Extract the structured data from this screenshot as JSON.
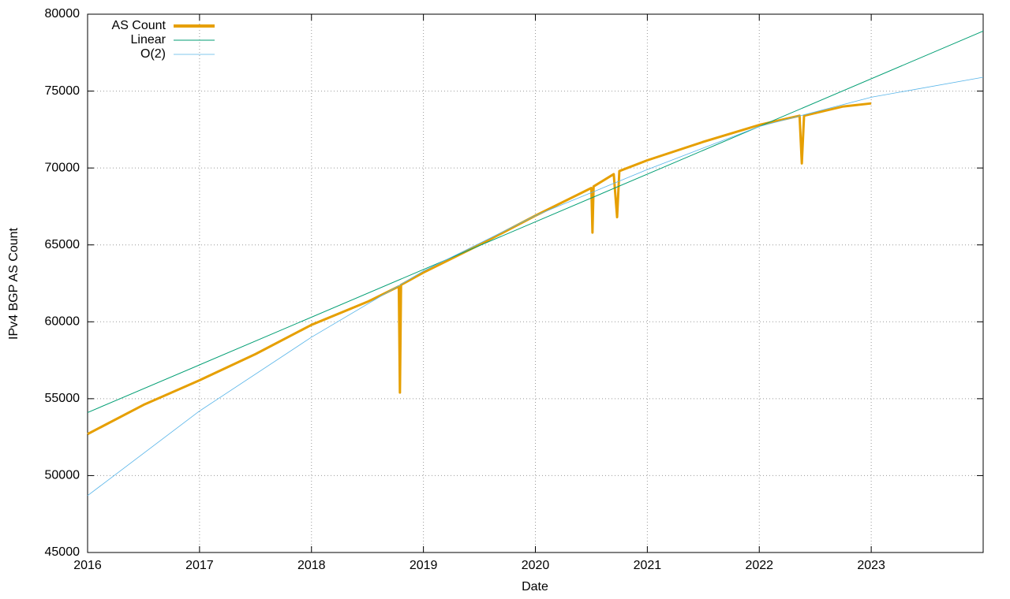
{
  "chart_data": {
    "type": "line",
    "xlabel": "Date",
    "ylabel": "IPv4 BGP AS Count",
    "xlim": [
      2016,
      2024
    ],
    "xticks": [
      2016,
      2017,
      2018,
      2019,
      2020,
      2021,
      2022,
      2023
    ],
    "ylim": [
      45000,
      80000
    ],
    "yticks": [
      45000,
      50000,
      55000,
      60000,
      65000,
      70000,
      75000,
      80000
    ],
    "grid": true,
    "legend": "top-left",
    "series": [
      {
        "name": "AS Count",
        "color": "#e69f00",
        "x": [
          2016.0,
          2016.5,
          2017.0,
          2017.5,
          2018.0,
          2018.5,
          2018.78,
          2018.79,
          2018.8,
          2019.0,
          2019.5,
          2020.0,
          2020.5,
          2020.51,
          2020.52,
          2020.7,
          2020.73,
          2020.75,
          2021.0,
          2021.5,
          2022.0,
          2022.36,
          2022.38,
          2022.4,
          2022.75,
          2023.0
        ],
        "values": [
          52700,
          54600,
          56200,
          57900,
          59800,
          61300,
          62300,
          55400,
          62400,
          63200,
          65000,
          66900,
          68700,
          65800,
          68800,
          69600,
          66800,
          69800,
          70500,
          71700,
          72800,
          73400,
          70300,
          73400,
          74000,
          74200
        ]
      },
      {
        "name": "Linear",
        "color": "#009e73",
        "x": [
          2016,
          2024
        ],
        "values": [
          54100,
          78900
        ]
      },
      {
        "name": "O(2)",
        "color": "#56b4e9",
        "x": [
          2016,
          2017,
          2018,
          2019,
          2020,
          2021,
          2022,
          2023,
          2024
        ],
        "values": [
          48700,
          54200,
          59000,
          63300,
          66900,
          69900,
          72700,
          74600,
          75900
        ]
      }
    ]
  }
}
